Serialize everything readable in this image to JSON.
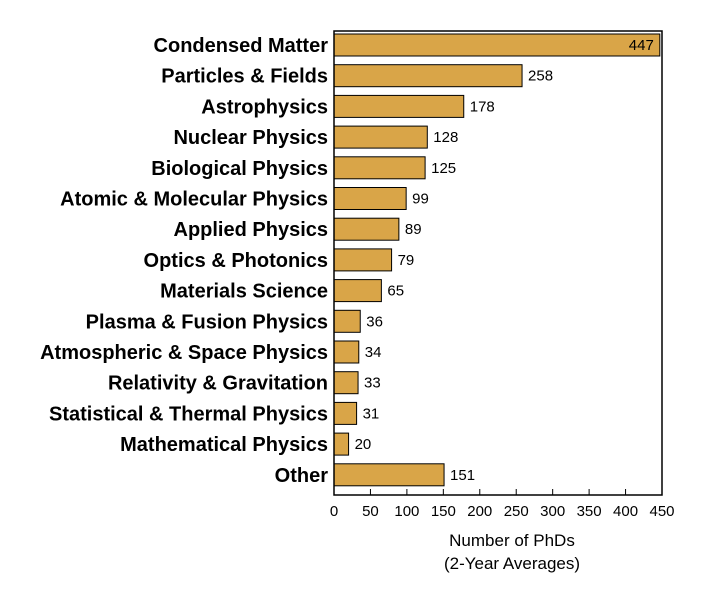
{
  "chart_data": {
    "type": "bar",
    "orientation": "horizontal",
    "categories": [
      "Condensed Matter",
      "Particles & Fields",
      "Astrophysics",
      "Nuclear Physics",
      "Biological Physics",
      "Atomic & Molecular Physics",
      "Applied Physics",
      "Optics & Photonics",
      "Materials Science",
      "Plasma & Fusion Physics",
      "Atmospheric & Space Physics",
      "Relativity & Gravitation",
      "Statistical & Thermal Physics",
      "Mathematical Physics",
      "Other"
    ],
    "values": [
      447,
      258,
      178,
      128,
      125,
      99,
      89,
      79,
      65,
      36,
      34,
      33,
      31,
      20,
      151
    ],
    "value_labels": [
      "447",
      "258",
      "178",
      "128",
      "125",
      "99",
      "89",
      "79",
      "65",
      "36",
      "34",
      "33",
      "31",
      "20",
      "151"
    ],
    "title": "",
    "xlabel": "Number of PhDs",
    "xlabel_sub": "(2-Year Averages)",
    "ylabel": "",
    "xlim": [
      0,
      450
    ],
    "xticks": [
      0,
      50,
      100,
      150,
      200,
      250,
      300,
      350,
      400,
      450
    ],
    "xtick_labels": [
      "0",
      "50",
      "100",
      "150",
      "200",
      "250",
      "300",
      "350",
      "400",
      "450"
    ],
    "grid": false,
    "legend": "none",
    "bar_color": "#D9A548",
    "bar_edge_color": "#000000",
    "frame": "box"
  }
}
